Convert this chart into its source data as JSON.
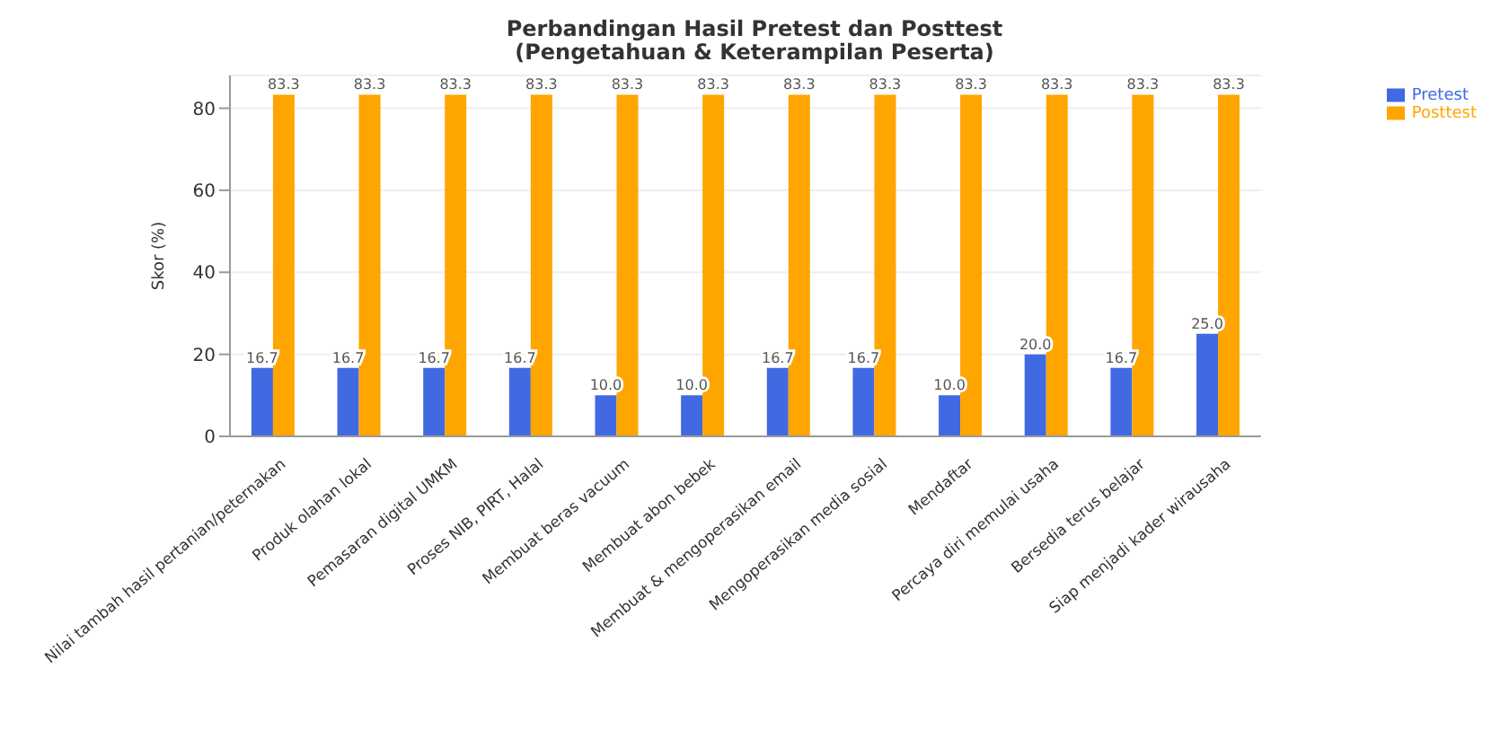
{
  "chart_data": {
    "type": "bar",
    "title": "Perbandingan Hasil Pretest dan Posttest\n(Pengetahuan & Keterampilan Peserta)",
    "ylabel": "Skor (%)",
    "categories": [
      "Nilai tambah hasil pertanian/peternakan",
      "Produk olahan lokal",
      "Pemasaran digital UMKM",
      "Proses NIB, PIRT, Halal",
      "Membuat beras vacuum",
      "Membuat abon bebek",
      "Membuat & mengoperasikan email",
      "Mengoperasikan media sosial",
      "Mendaftar",
      "Percaya diri memulai usaha",
      "Bersedia terus belajar",
      "Siap menjadi kader wirausaha"
    ],
    "series": [
      {
        "name": "Pretest",
        "color": "#4169e1",
        "values": [
          16.7,
          16.7,
          16.7,
          16.7,
          10.0,
          10.0,
          16.7,
          16.7,
          10.0,
          20.0,
          16.7,
          25.0
        ],
        "value_labels": [
          "16.7",
          "16.7",
          "16.7",
          "16.7",
          "10.0",
          "10.0",
          "16.7",
          "16.7",
          "10.0",
          "20.0",
          "16.7",
          "25.0"
        ]
      },
      {
        "name": "Posttest",
        "color": "#ffa500",
        "values": [
          83.3,
          83.3,
          83.3,
          83.3,
          83.3,
          83.3,
          83.3,
          83.3,
          83.3,
          83.3,
          83.3,
          83.3
        ],
        "value_labels": [
          "83.3",
          "83.3",
          "83.3",
          "83.3",
          "83.3",
          "83.3",
          "83.3",
          "83.3",
          "83.3",
          "83.3",
          "83.3",
          "83.3"
        ]
      }
    ],
    "ylim": [
      0,
      88
    ],
    "yticks": [
      0,
      20,
      40,
      60,
      80
    ],
    "grid": "y",
    "legend": "top right"
  }
}
